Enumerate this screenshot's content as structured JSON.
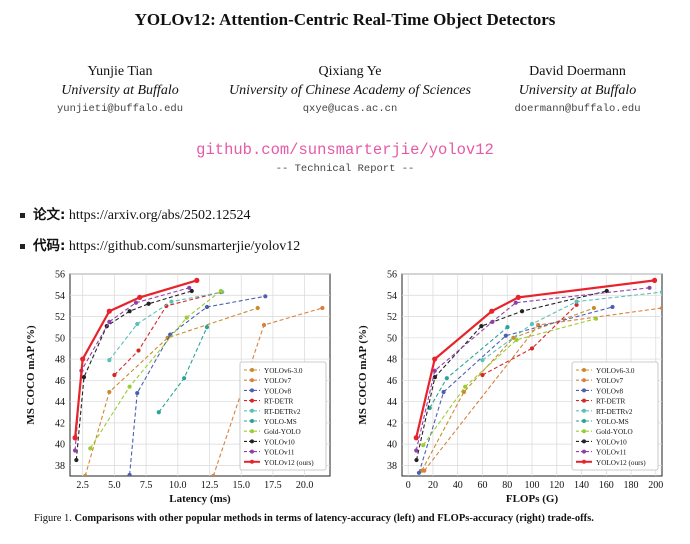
{
  "header": {
    "title": "YOLOv12: Attention-Centric Real-Time Object Detectors",
    "authors": [
      {
        "name": "Yunjie Tian",
        "affiliation": "University at Buffalo",
        "email": "yunjieti@buffalo.edu"
      },
      {
        "name": "Qixiang Ye",
        "affiliation": "University of Chinese Academy of Sciences",
        "email": "qxye@ucas.ac.cn"
      },
      {
        "name": "David Doermann",
        "affiliation": "University at Buffalo",
        "email": "doermann@buffalo.edu"
      }
    ],
    "repo": "github.com/sunsmarterjie/yolov12",
    "report": "-- Technical Report --"
  },
  "links": [
    {
      "key": "论文:",
      "url": "https://arxiv.org/abs/2502.12524"
    },
    {
      "key": "代码:",
      "url": "https://github.com/sunsmarterjie/yolov12"
    }
  ],
  "caption": {
    "prefix": "Figure 1.",
    "text": "Comparisons with other popular methods in terms of latency-accuracy (left) and FLOPs-accuracy (right) trade-offs."
  },
  "chart_data": [
    {
      "type": "line",
      "xlabel": "Latency (ms)",
      "ylabel": "MS COCO mAP (%)",
      "xlim": [
        1.5,
        22
      ],
      "ylim": [
        37,
        56
      ],
      "xticks": [
        2.5,
        5.0,
        7.5,
        10.0,
        12.5,
        15.0,
        17.5,
        20.0
      ],
      "yticks": [
        38,
        40,
        42,
        44,
        46,
        48,
        50,
        52,
        54,
        56
      ],
      "grid": true,
      "legend_position": "bottom-right",
      "series": [
        {
          "name": "YOLOv6-3.0",
          "color": "#cc8a2e",
          "x": [
            2.7,
            4.6,
            9.2,
            16.3
          ],
          "y": [
            37.0,
            44.9,
            50.0,
            52.8
          ]
        },
        {
          "name": "YOLOv7",
          "color": "#d98040",
          "x": [
            12.8,
            16.8,
            21.4
          ],
          "y": [
            37.0,
            51.2,
            52.8
          ]
        },
        {
          "name": "YOLOv8",
          "color": "#4c5fb0",
          "x": [
            6.2,
            6.8,
            9.4,
            12.3,
            16.9
          ],
          "y": [
            37.1,
            44.8,
            50.3,
            52.9,
            53.9
          ]
        },
        {
          "name": "RT-DETR",
          "color": "#d62728",
          "x": [
            5.0,
            6.9,
            9.1,
            13.4
          ],
          "y": [
            46.5,
            48.8,
            53.0,
            54.3
          ]
        },
        {
          "name": "RT-DETRv2",
          "color": "#5cc0b8",
          "x": [
            4.6,
            6.8,
            9.5,
            13.5
          ],
          "y": [
            47.9,
            51.3,
            53.4,
            54.3
          ]
        },
        {
          "name": "YOLO-MS",
          "color": "#2ba39a",
          "x": [
            8.5,
            10.5,
            12.3
          ],
          "y": [
            43.0,
            46.2,
            51.0
          ]
        },
        {
          "name": "Gold-YOLO",
          "color": "#9acd32",
          "x": [
            3.1,
            6.2,
            10.7,
            13.4
          ],
          "y": [
            39.6,
            45.4,
            51.9,
            54.4
          ]
        },
        {
          "name": "YOLOv10",
          "color": "#222222",
          "x": [
            2.0,
            2.6,
            4.4,
            6.2,
            7.7,
            11.1
          ],
          "y": [
            38.5,
            46.3,
            51.1,
            52.5,
            53.2,
            54.4
          ]
        },
        {
          "name": "YOLOv11",
          "color": "#8f3fa8",
          "x": [
            1.9,
            2.4,
            4.6,
            6.7,
            10.9
          ],
          "y": [
            39.4,
            46.9,
            51.5,
            53.3,
            54.7
          ]
        },
        {
          "name": "YOLOv12 (ours)",
          "color": "#e8232b",
          "x": [
            1.9,
            2.5,
            4.6,
            7.0,
            11.5
          ],
          "y": [
            40.6,
            48.0,
            52.5,
            53.8,
            55.4
          ]
        }
      ]
    },
    {
      "type": "line",
      "xlabel": "FLOPs (G)",
      "ylabel": "MS COCO mAP (%)",
      "xlim": [
        -5,
        205
      ],
      "ylim": [
        37,
        56
      ],
      "xticks": [
        0,
        20,
        40,
        60,
        80,
        100,
        120,
        140,
        160,
        180,
        200
      ],
      "yticks": [
        38,
        40,
        42,
        44,
        46,
        48,
        50,
        52,
        54,
        56
      ],
      "grid": true,
      "legend_position": "bottom-right",
      "series": [
        {
          "name": "YOLOv6-3.0",
          "color": "#cc8a2e",
          "x": [
            11,
            45,
            85,
            150
          ],
          "y": [
            37.5,
            44.9,
            50.0,
            52.8
          ]
        },
        {
          "name": "YOLOv7",
          "color": "#d98040",
          "x": [
            13,
            105,
            205
          ],
          "y": [
            37.5,
            51.2,
            52.8
          ]
        },
        {
          "name": "YOLOv8",
          "color": "#4c5fb0",
          "x": [
            8.7,
            28.6,
            78.9,
            165
          ],
          "y": [
            37.3,
            44.9,
            50.2,
            52.9
          ]
        },
        {
          "name": "RT-DETR",
          "color": "#d62728",
          "x": [
            60,
            100,
            136
          ],
          "y": [
            46.5,
            49.0,
            53.1
          ]
        },
        {
          "name": "RT-DETRv2",
          "color": "#5cc0b8",
          "x": [
            60,
            100,
            136,
            205
          ],
          "y": [
            47.9,
            51.3,
            53.4,
            54.3
          ]
        },
        {
          "name": "YOLO-MS",
          "color": "#2ba39a",
          "x": [
            17.4,
            31.2,
            80.2
          ],
          "y": [
            43.4,
            46.2,
            51.0
          ]
        },
        {
          "name": "Gold-YOLO",
          "color": "#9acd32",
          "x": [
            12.1,
            46.0,
            87.5,
            151.7
          ],
          "y": [
            39.9,
            45.4,
            49.8,
            51.8
          ]
        },
        {
          "name": "YOLOv10",
          "color": "#222222",
          "x": [
            6.7,
            21.6,
            59.1,
            92.0,
            160.4
          ],
          "y": [
            38.5,
            46.3,
            51.1,
            52.5,
            54.4
          ]
        },
        {
          "name": "YOLOv11",
          "color": "#8f3fa8",
          "x": [
            6.5,
            21.5,
            68.0,
            86.9,
            194.9
          ],
          "y": [
            39.4,
            46.9,
            51.5,
            53.3,
            54.7
          ]
        },
        {
          "name": "YOLOv12 (ours)",
          "color": "#e8232b",
          "x": [
            6.5,
            21.4,
            67.5,
            88.9,
            199.0
          ],
          "y": [
            40.6,
            48.0,
            52.5,
            53.8,
            55.4
          ]
        }
      ]
    }
  ]
}
